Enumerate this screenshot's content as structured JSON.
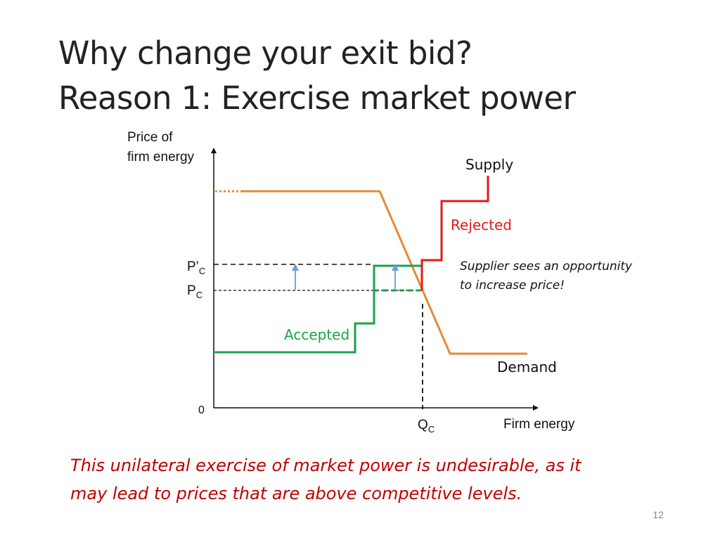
{
  "slide": {
    "title_lines": [
      "Why change your exit bid?",
      "Reason 1: Exercise market power"
    ],
    "caption_lines": [
      "This unilateral exercise of market power is undesirable, as it",
      "may lead to prices that are above competitive levels."
    ],
    "page_number": "12"
  },
  "diagram": {
    "y_axis_label_lines": [
      "Price of",
      "firm energy"
    ],
    "x_axis_label": "Firm energy",
    "origin_label": "0",
    "p_prime_c_main": "P’",
    "p_prime_c_sub": "C",
    "p_c_main": "P",
    "p_c_sub": "C",
    "q_c_main": "Q",
    "q_c_sub": "C",
    "supply_label": "Supply",
    "demand_label": "Demand",
    "rejected_label": "Rejected",
    "accepted_label": "Accepted",
    "annotation_lines": [
      "Supplier sees an opportunity",
      "to increase price!"
    ]
  },
  "colors": {
    "demand": "#e48a3a",
    "accepted": "#1aa34a",
    "rejected": "#e31a1a",
    "arrow": "#6a9fd4",
    "caption": "#c00000"
  }
}
